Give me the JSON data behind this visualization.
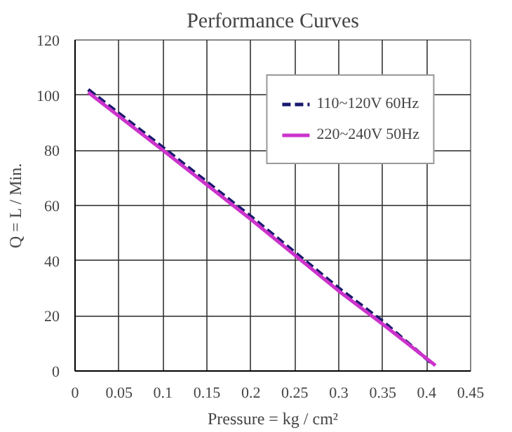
{
  "chart_data": {
    "type": "line",
    "title": "Performance Curves",
    "xlabel": "Pressure = kg / cm²",
    "ylabel": "Q = L / Min.",
    "xlim": [
      0,
      0.45
    ],
    "xticks": [
      0,
      0.05,
      0.1,
      0.15,
      0.2,
      0.25,
      0.3,
      0.35,
      0.4,
      0.45
    ],
    "ylim": [
      0,
      120
    ],
    "yticks": [
      0,
      20,
      40,
      60,
      80,
      100,
      120
    ],
    "grid": true,
    "legend": "top right",
    "marker": "none",
    "series": [
      {
        "name": "110~120V 60Hz",
        "color": "#1a1a6e",
        "line_style": "dashed",
        "x": [
          0.015,
          0.1,
          0.2,
          0.3,
          0.35,
          0.405
        ],
        "values": [
          102,
          81,
          56,
          30,
          18,
          3
        ]
      },
      {
        "name": "220~240V 50Hz",
        "color": "#cc33cc",
        "line_style": "solid",
        "x": [
          0.015,
          0.1,
          0.2,
          0.3,
          0.35,
          0.41
        ],
        "values": [
          101,
          80,
          55,
          29,
          17,
          2
        ]
      }
    ]
  }
}
